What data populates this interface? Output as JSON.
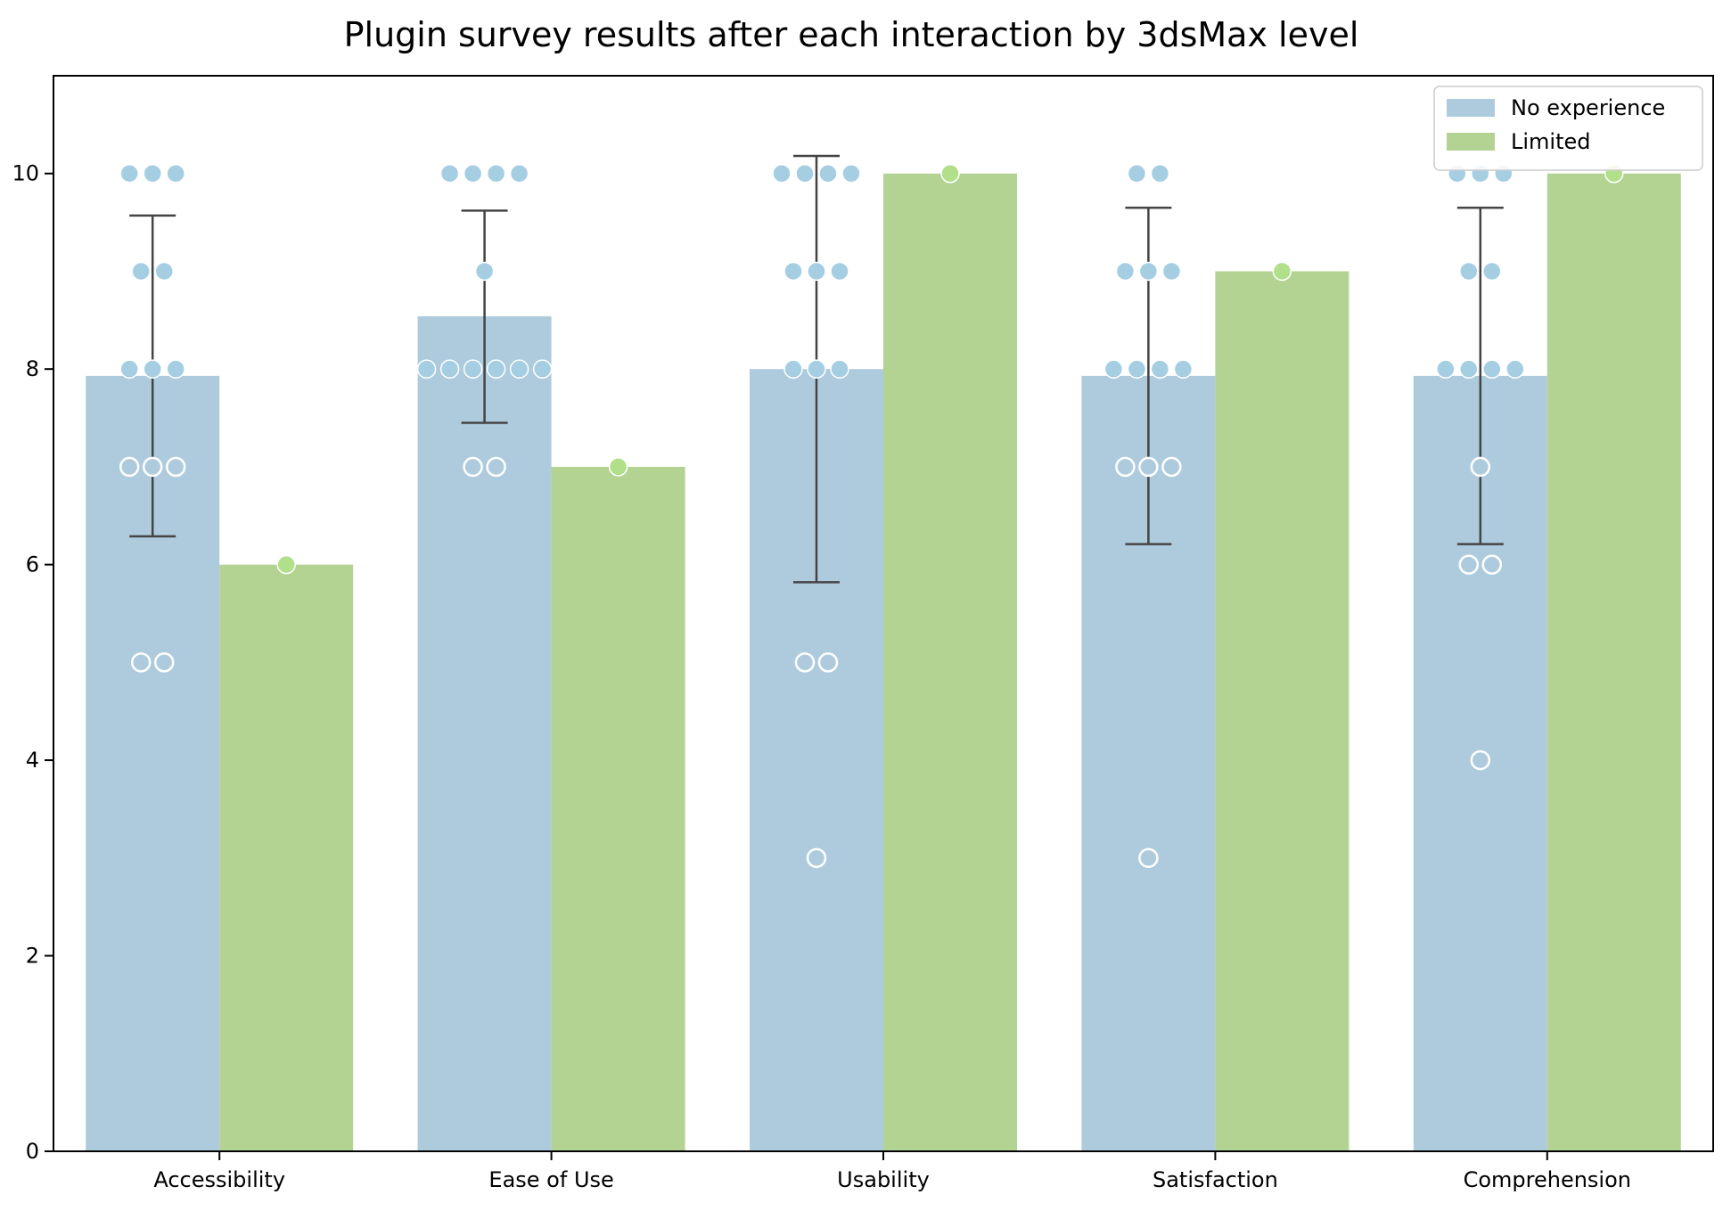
{
  "chart_data": {
    "type": "bar",
    "title": "Plugin survey results after each interaction by 3dsMax level",
    "xlabel": "",
    "ylabel": "",
    "categories": [
      "Accessibility",
      "Ease of Use",
      "Usability",
      "Satisfaction",
      "Comprehension"
    ],
    "ylim": [
      0,
      11
    ],
    "yticks": [
      0,
      2,
      4,
      6,
      8,
      10
    ],
    "grid": false,
    "legend_position": "top-right",
    "series": [
      {
        "name": "No experience",
        "color": "#aecbdd",
        "marker_color": "#a6cee3",
        "values": [
          7.93,
          8.54,
          8.0,
          7.93,
          7.93
        ],
        "error_low": [
          6.29,
          7.45,
          5.82,
          6.21,
          6.21
        ],
        "error_high": [
          9.57,
          9.62,
          10.18,
          9.65,
          9.65
        ],
        "points": [
          [
            10,
            10,
            10,
            9,
            9,
            8,
            8,
            8,
            7,
            7,
            7,
            5,
            5
          ],
          [
            10,
            10,
            10,
            10,
            9,
            8,
            8,
            8,
            8,
            8,
            8,
            7,
            7
          ],
          [
            10,
            10,
            10,
            10,
            9,
            9,
            9,
            8,
            8,
            8,
            5,
            5,
            3
          ],
          [
            10,
            10,
            9,
            9,
            9,
            8,
            8,
            8,
            8,
            7,
            7,
            7,
            3
          ],
          [
            10,
            10,
            10,
            9,
            9,
            8,
            8,
            8,
            8,
            7,
            6,
            6,
            4
          ]
        ],
        "hollow_points": [
          [
            false,
            false,
            false,
            false,
            false,
            false,
            false,
            false,
            true,
            true,
            true,
            true,
            true
          ],
          [
            false,
            false,
            false,
            false,
            false,
            false,
            false,
            false,
            false,
            false,
            false,
            true,
            true
          ],
          [
            false,
            false,
            false,
            false,
            false,
            false,
            false,
            false,
            false,
            false,
            true,
            true,
            true
          ],
          [
            false,
            false,
            false,
            false,
            false,
            false,
            false,
            false,
            false,
            true,
            true,
            true,
            true
          ],
          [
            false,
            false,
            false,
            false,
            false,
            false,
            false,
            false,
            false,
            true,
            true,
            true,
            true
          ]
        ]
      },
      {
        "name": "Limited",
        "color": "#b3d393",
        "marker_color": "#b2df8a",
        "values": [
          6,
          7,
          10,
          9,
          10
        ],
        "points": [
          [
            6
          ],
          [
            7
          ],
          [
            10
          ],
          [
            9
          ],
          [
            10
          ]
        ]
      }
    ]
  }
}
